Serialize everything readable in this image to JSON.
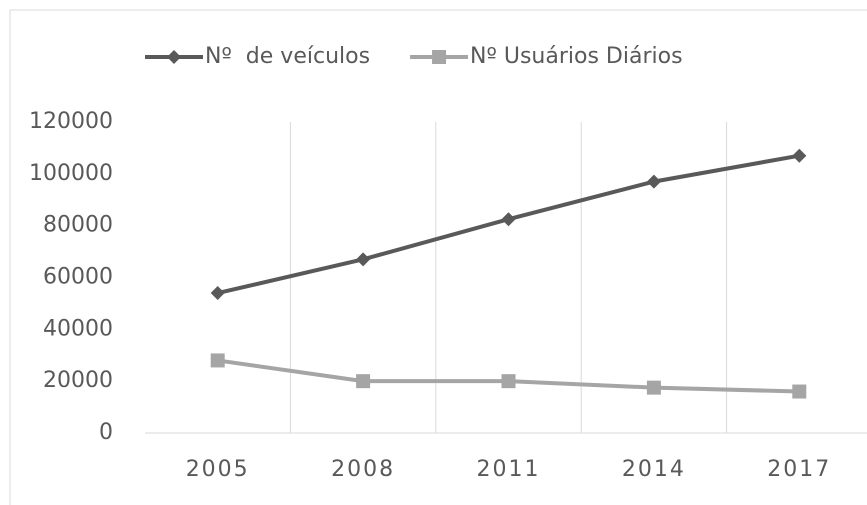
{
  "chart_data": {
    "type": "line",
    "categories": [
      "2005",
      "2008",
      "2011",
      "2014",
      "2017"
    ],
    "series": [
      {
        "name": "Nº  de veículos",
        "color": "#595959",
        "marker": "diamond",
        "values": [
          54000,
          67000,
          82500,
          97000,
          107000
        ]
      },
      {
        "name": "Nº Usuários Diários",
        "color": "#a5a5a5",
        "marker": "square",
        "values": [
          28000,
          20000,
          20000,
          17500,
          16000
        ]
      }
    ],
    "ylim": [
      0,
      120000
    ],
    "yticks": [
      0,
      20000,
      40000,
      60000,
      80000,
      100000,
      120000
    ],
    "grid": "x",
    "legend": "top"
  }
}
